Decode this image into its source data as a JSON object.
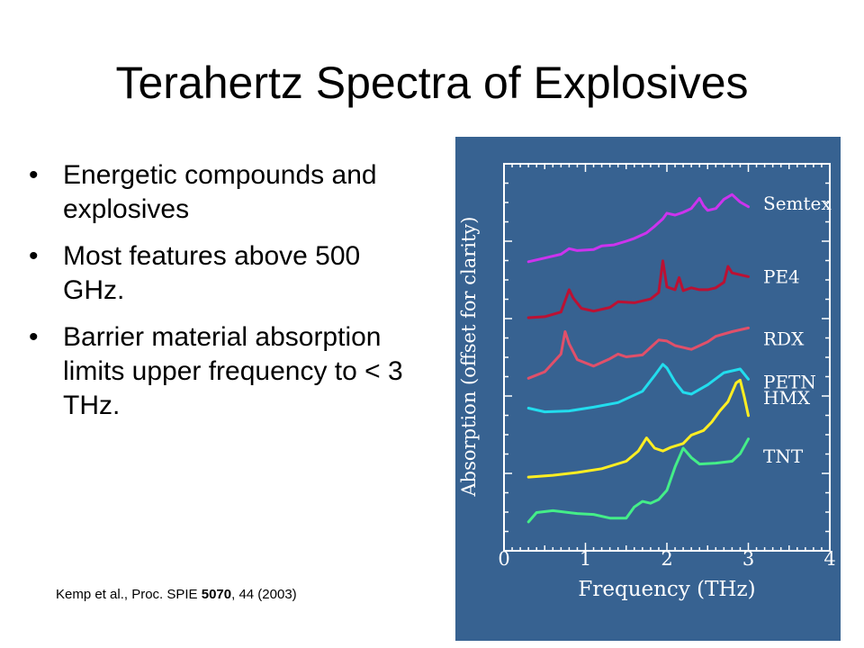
{
  "slide": {
    "title": "Terahertz Spectra of Explosives",
    "bullets": [
      "Energetic compounds and explosives",
      "Most features above 500 GHz.",
      "Barrier material absorption limits upper frequency to < 3 THz."
    ],
    "citation": {
      "prefix": "Kemp et al., Proc. SPIE ",
      "bold": "5070",
      "suffix": ", 44 (2003)"
    }
  },
  "chart_data": {
    "type": "line",
    "xlabel": "Frequency (THz)",
    "ylabel": "Absorption (offset for clarity)",
    "xlim": [
      0,
      4
    ],
    "xticks": [
      "0",
      "1",
      "2",
      "3",
      "4"
    ],
    "yticks_labeled": false,
    "background": "#376291",
    "series": [
      {
        "name": "Semtex",
        "color": "#cc33ee",
        "x": [
          0.3,
          0.5,
          0.7,
          0.8,
          0.9,
          1.1,
          1.2,
          1.35,
          1.5,
          1.6,
          1.75,
          1.85,
          1.95,
          2.0,
          2.1,
          2.2,
          2.3,
          2.4,
          2.45,
          2.5,
          2.6,
          2.7,
          2.8,
          2.9,
          3.0
        ],
        "y": [
          7.2,
          7.28,
          7.36,
          7.48,
          7.44,
          7.46,
          7.54,
          7.56,
          7.64,
          7.7,
          7.82,
          7.96,
          8.12,
          8.24,
          8.2,
          8.26,
          8.34,
          8.56,
          8.4,
          8.3,
          8.34,
          8.54,
          8.64,
          8.48,
          8.38
        ]
      },
      {
        "name": "PE4",
        "color": "#bb1133",
        "x": [
          0.3,
          0.5,
          0.7,
          0.8,
          0.85,
          0.95,
          1.1,
          1.3,
          1.4,
          1.6,
          1.8,
          1.9,
          1.95,
          2.0,
          2.1,
          2.15,
          2.2,
          2.3,
          2.4,
          2.5,
          2.6,
          2.7,
          2.75,
          2.8,
          2.9,
          3.0
        ],
        "y": [
          6.0,
          6.02,
          6.12,
          6.6,
          6.42,
          6.2,
          6.14,
          6.22,
          6.34,
          6.32,
          6.4,
          6.54,
          7.22,
          6.66,
          6.6,
          6.86,
          6.58,
          6.64,
          6.6,
          6.6,
          6.64,
          6.76,
          7.1,
          6.96,
          6.92,
          6.88
        ]
      },
      {
        "name": "RDX",
        "color": "#e0506a",
        "x": [
          0.3,
          0.5,
          0.7,
          0.75,
          0.8,
          0.9,
          1.1,
          1.3,
          1.4,
          1.5,
          1.7,
          1.9,
          2.0,
          2.1,
          2.3,
          2.5,
          2.6,
          2.8,
          3.0
        ],
        "y": [
          4.7,
          4.84,
          5.22,
          5.7,
          5.44,
          5.1,
          4.96,
          5.12,
          5.22,
          5.16,
          5.2,
          5.52,
          5.5,
          5.4,
          5.32,
          5.48,
          5.6,
          5.7,
          5.78
        ]
      },
      {
        "name": "PETN",
        "color": "#22ddee",
        "x": [
          0.3,
          0.5,
          0.8,
          1.1,
          1.4,
          1.7,
          1.85,
          1.95,
          2.0,
          2.1,
          2.2,
          2.3,
          2.5,
          2.7,
          2.9,
          3.0
        ],
        "y": [
          4.06,
          3.98,
          4.0,
          4.08,
          4.18,
          4.42,
          4.76,
          5.0,
          4.92,
          4.62,
          4.4,
          4.36,
          4.56,
          4.82,
          4.9,
          4.68
        ]
      },
      {
        "name": "HMX",
        "color": "#ffee22",
        "x": [
          0.3,
          0.6,
          0.9,
          1.2,
          1.5,
          1.65,
          1.75,
          1.85,
          1.95,
          2.05,
          2.2,
          2.3,
          2.45,
          2.55,
          2.65,
          2.75,
          2.85,
          2.9,
          2.95,
          3.0
        ],
        "y": [
          2.58,
          2.62,
          2.68,
          2.76,
          2.92,
          3.14,
          3.42,
          3.2,
          3.14,
          3.22,
          3.3,
          3.48,
          3.58,
          3.76,
          4.0,
          4.2,
          4.6,
          4.66,
          4.3,
          3.9
        ]
      },
      {
        "name": "TNT",
        "color": "#44ee88",
        "x": [
          0.3,
          0.4,
          0.6,
          0.9,
          1.1,
          1.3,
          1.5,
          1.6,
          1.7,
          1.8,
          1.9,
          2.0,
          2.1,
          2.2,
          2.3,
          2.4,
          2.6,
          2.8,
          2.9,
          3.0
        ],
        "y": [
          1.62,
          1.82,
          1.86,
          1.8,
          1.78,
          1.7,
          1.7,
          1.94,
          2.06,
          2.02,
          2.1,
          2.3,
          2.8,
          3.2,
          3.0,
          2.86,
          2.88,
          2.92,
          3.08,
          3.4
        ]
      }
    ]
  }
}
